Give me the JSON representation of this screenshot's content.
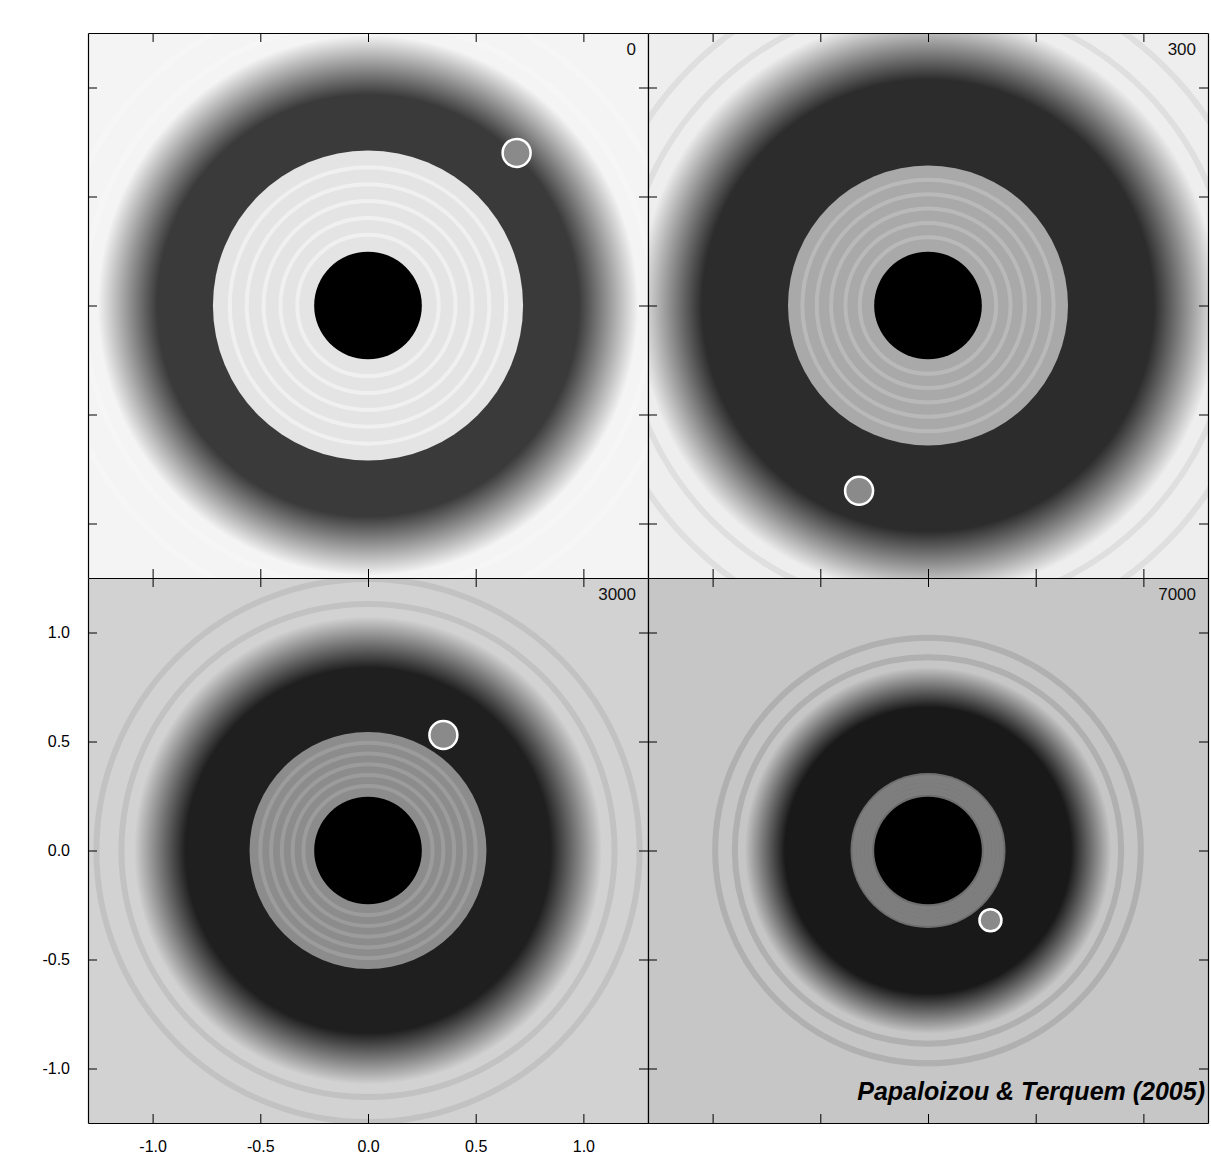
{
  "chart_data": [
    {
      "type": "density_map",
      "title": "0",
      "xlim": [
        -1.3,
        1.3
      ],
      "ylim": [
        -1.25,
        1.25
      ],
      "xticks": [
        {
          "value": -1.0,
          "label": "-1.0"
        },
        {
          "value": -0.5,
          "label": "-0.5"
        },
        {
          "value": 0.0,
          "label": "0.0"
        },
        {
          "value": 0.5,
          "label": "0.5"
        },
        {
          "value": 1.0,
          "label": "1.0"
        }
      ],
      "yticks": [
        {
          "value": -1.0,
          "label": "-1.0"
        },
        {
          "value": -0.5,
          "label": "-0.5"
        },
        {
          "value": 0.0,
          "label": "0.0"
        },
        {
          "value": 0.5,
          "label": "0.5"
        },
        {
          "value": 1.0,
          "label": "1.0"
        }
      ],
      "tick_labels": false,
      "planet": {
        "x": 0.69,
        "y": 0.7
      },
      "star_radius": 0.25,
      "gap": [
        0.72,
        1.12
      ]
    },
    {
      "type": "density_map",
      "title": "300",
      "xlim": [
        -1.3,
        1.3
      ],
      "ylim": [
        -1.25,
        1.25
      ],
      "xticks": [
        {
          "value": -1.0,
          "label": "-1.0"
        },
        {
          "value": -0.5,
          "label": "-0.5"
        },
        {
          "value": 0.0,
          "label": "0.0"
        },
        {
          "value": 0.5,
          "label": "0.5"
        },
        {
          "value": 1.0,
          "label": "1.0"
        }
      ],
      "yticks": [
        {
          "value": -1.0,
          "label": "-1.0"
        },
        {
          "value": -0.5,
          "label": "-0.5"
        },
        {
          "value": 0.0,
          "label": "0.0"
        },
        {
          "value": 0.5,
          "label": "0.5"
        },
        {
          "value": 1.0,
          "label": "1.0"
        }
      ],
      "tick_labels": false,
      "planet": {
        "x": -0.32,
        "y": -0.85
      },
      "star_radius": 0.25,
      "gap": [
        0.65,
        1.2
      ]
    },
    {
      "type": "density_map",
      "title": "3000",
      "xlim": [
        -1.3,
        1.3
      ],
      "ylim": [
        -1.25,
        1.25
      ],
      "xticks": [
        {
          "value": -1.0,
          "label": "-1.0"
        },
        {
          "value": -0.5,
          "label": "-0.5"
        },
        {
          "value": 0.0,
          "label": "0.0"
        },
        {
          "value": 0.5,
          "label": "0.5"
        },
        {
          "value": 1.0,
          "label": "1.0"
        }
      ],
      "yticks": [
        {
          "value": -1.0,
          "label": "-1.0"
        },
        {
          "value": -0.5,
          "label": "-0.5"
        },
        {
          "value": 0.0,
          "label": "0.0"
        },
        {
          "value": 0.5,
          "label": "0.5"
        },
        {
          "value": 1.0,
          "label": "1.0"
        }
      ],
      "planet": {
        "x": 0.35,
        "y": 0.53
      },
      "star_radius": 0.25,
      "gap": [
        0.55,
        0.97
      ]
    },
    {
      "type": "density_map",
      "title": "7000",
      "xlim": [
        -1.3,
        1.3
      ],
      "ylim": [
        -1.25,
        1.25
      ],
      "xticks": [
        {
          "value": -1.0,
          "label": "-1.0"
        },
        {
          "value": -0.5,
          "label": "-0.5"
        },
        {
          "value": 0.0,
          "label": "0.0"
        },
        {
          "value": 0.5,
          "label": "0.5"
        },
        {
          "value": 1.0,
          "label": "1.0"
        }
      ],
      "yticks": [
        {
          "value": -1.0,
          "label": "-1.0"
        },
        {
          "value": -0.5,
          "label": "-0.5"
        },
        {
          "value": 0.0,
          "label": "0.0"
        },
        {
          "value": 0.5,
          "label": "0.5"
        },
        {
          "value": 1.0,
          "label": "1.0"
        }
      ],
      "tick_labels": false,
      "planet": {
        "x": 0.29,
        "y": -0.32
      },
      "star_radius": 0.25,
      "gap": [
        0.36,
        0.76
      ]
    }
  ],
  "source": "Papaloizou & Terquem (2005)"
}
